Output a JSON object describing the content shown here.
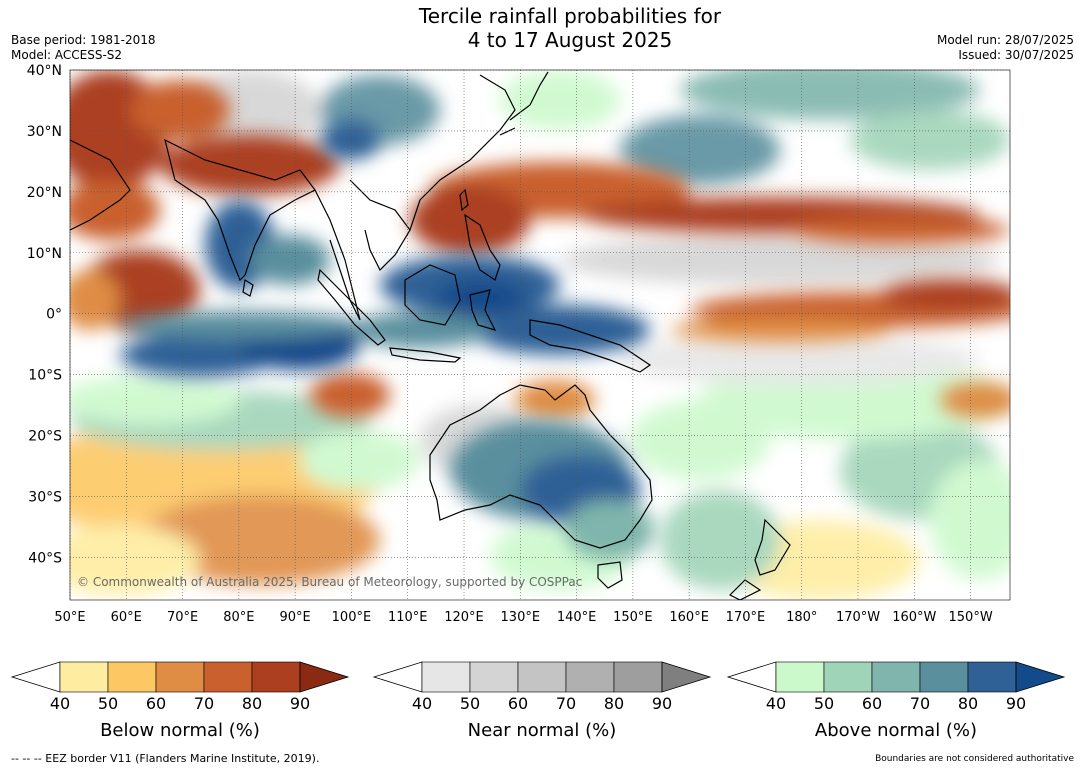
{
  "title": {
    "line1": "Tercile rainfall probabilities for",
    "line2": "4 to 17 August 2025"
  },
  "meta": {
    "base_period": "Base period: 1981-2018",
    "model": "Model: ACCESS-S2",
    "model_run": "Model run: 28/07/2025",
    "issued": "Issued: 30/07/2025"
  },
  "map": {
    "lat_labels": [
      "40°N",
      "30°N",
      "20°N",
      "10°N",
      "0°",
      "10°S",
      "20°S",
      "30°S",
      "40°S"
    ],
    "lat_values": [
      40,
      30,
      20,
      10,
      0,
      -10,
      -20,
      -30,
      -40
    ],
    "lon_labels": [
      "50°E",
      "60°E",
      "70°E",
      "80°E",
      "90°E",
      "100°E",
      "110°E",
      "120°E",
      "130°E",
      "140°E",
      "150°E",
      "160°E",
      "170°E",
      "180°",
      "170°W",
      "160°W",
      "150°W"
    ],
    "lon_values": [
      50,
      60,
      70,
      80,
      90,
      100,
      110,
      120,
      130,
      140,
      150,
      160,
      170,
      180,
      190,
      200,
      210
    ],
    "lon_range": [
      50,
      217
    ],
    "lat_range": [
      -47,
      40
    ],
    "copyright": "© Commonwealth of Australia 2025, Bureau of Meteorology, supported by COSPPac"
  },
  "colorbars": [
    {
      "label": "Below normal (%)",
      "ticks": [
        "40",
        "50",
        "60",
        "70",
        "80",
        "90"
      ],
      "colors": [
        "#ffffff",
        "#feeda0",
        "#fdc863",
        "#df8d44",
        "#c9602e",
        "#ab3f20",
        "#8b2a12"
      ]
    },
    {
      "label": "Near normal (%)",
      "ticks": [
        "40",
        "50",
        "60",
        "70",
        "80",
        "90"
      ],
      "colors": [
        "#ffffff",
        "#e6e6e6",
        "#d4d4d4",
        "#c4c4c4",
        "#b0b0b0",
        "#9e9e9e",
        "#7f7f7f"
      ]
    },
    {
      "label": "Above normal (%)",
      "ticks": [
        "40",
        "50",
        "60",
        "70",
        "80",
        "90"
      ],
      "colors": [
        "#ffffff",
        "#ccf9cc",
        "#a0d4b8",
        "#7fb5ac",
        "#5a8f9e",
        "#2f6096",
        "#124a8a"
      ]
    }
  ],
  "footer": {
    "eez": "--  --  -- EEZ border V11 (Flanders Marine Institute, 2019).",
    "boundaries": "Boundaries are not considered authoritative"
  }
}
